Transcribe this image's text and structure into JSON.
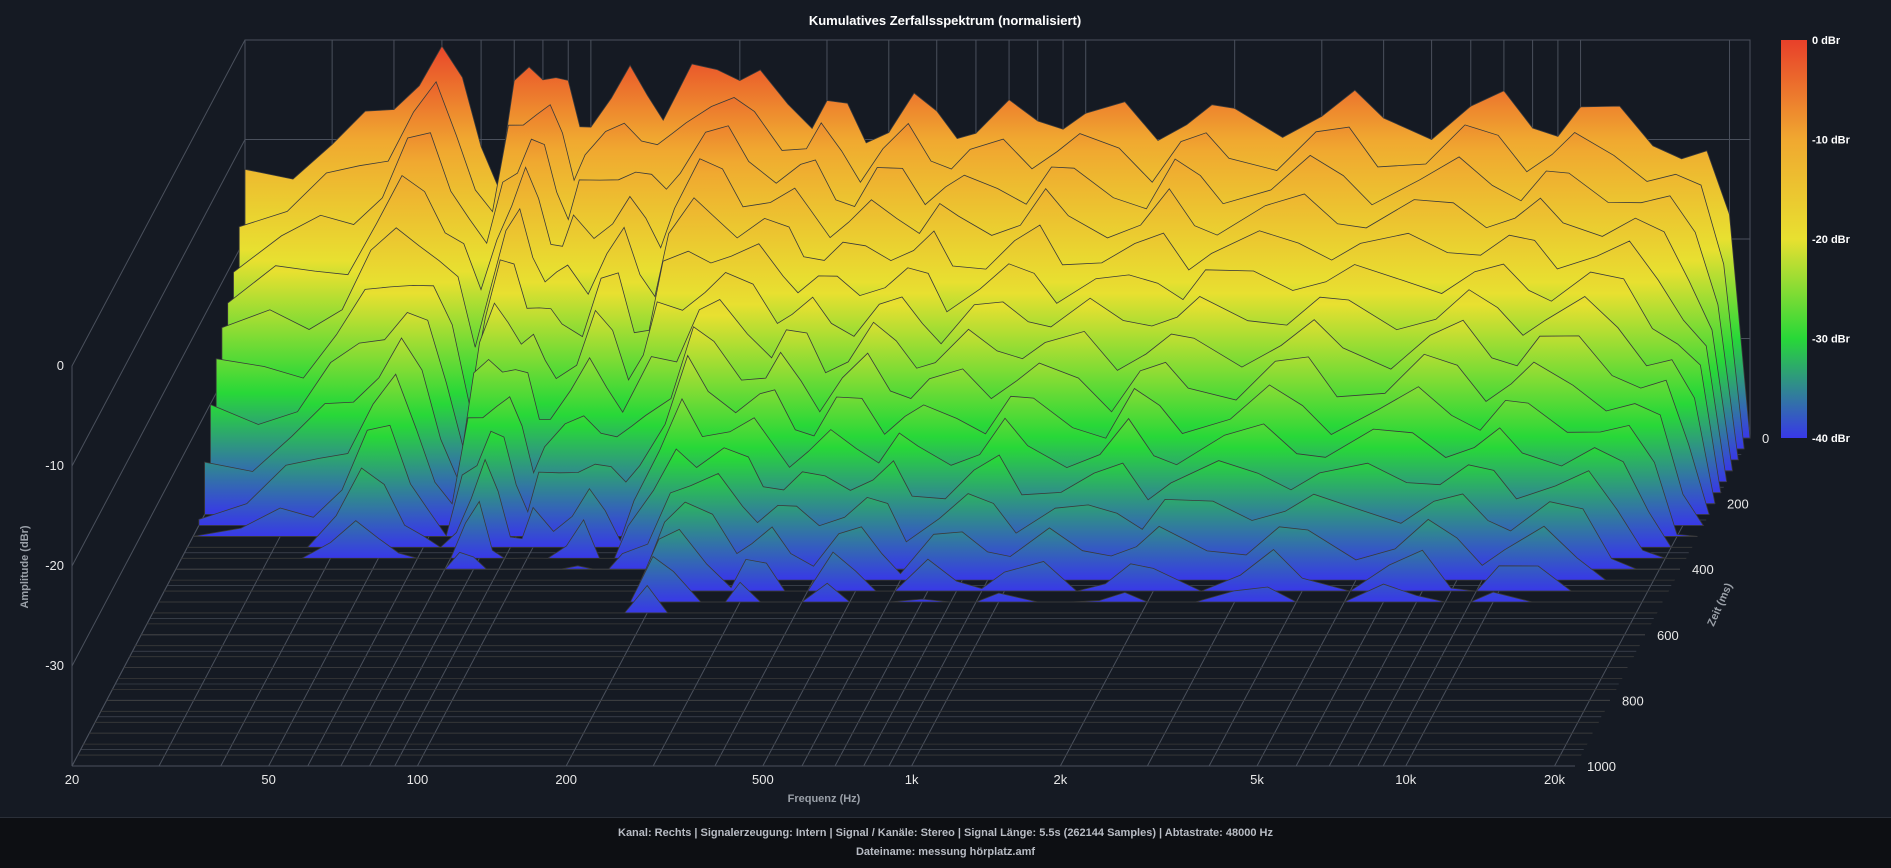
{
  "chart_data": {
    "type": "waterfall-3d",
    "title": "Kumulatives Zerfallsspektrum (normalisiert)",
    "xlabel": "Frequenz (Hz)",
    "ylabel": "Amplitude (dBr)",
    "zlabel": "Zeit (ms)",
    "x_scale": "log",
    "x_ticks": [
      20,
      50,
      100,
      200,
      500,
      1000,
      2000,
      5000,
      10000,
      20000
    ],
    "x_tick_labels": [
      "20",
      "50",
      "100",
      "200",
      "500",
      "1k",
      "2k",
      "5k",
      "10k",
      "20k"
    ],
    "y_ticks": [
      0,
      -10,
      -20,
      -30
    ],
    "y_tick_labels": [
      "0",
      "-10",
      "-20",
      "-30"
    ],
    "z_ticks": [
      0,
      200,
      400,
      600,
      800,
      1000
    ],
    "z_tick_labels": [
      "0",
      "200",
      "400",
      "600",
      "800",
      "1000"
    ],
    "colorbar": {
      "labels": [
        "0 dBr",
        "-10 dBr",
        "-20 dBr",
        "-30 dBr",
        "-40 dBr"
      ],
      "colors": [
        "#e8402a",
        "#f0a830",
        "#e8e030",
        "#28d838",
        "#3838e8"
      ]
    },
    "front_slice_freqs": [
      20,
      25,
      30,
      35,
      40,
      45,
      50,
      55,
      60,
      65,
      70,
      75,
      80,
      85,
      90,
      95,
      100,
      110,
      120,
      130,
      140,
      150,
      160,
      180,
      200,
      220,
      250,
      280,
      300,
      330,
      360,
      400,
      450,
      500,
      550,
      600,
      700,
      800,
      900,
      1000,
      1200,
      1400,
      1600,
      1800,
      2000,
      2500,
      3000,
      3500,
      4000,
      5000,
      6000,
      7000,
      8000,
      9000,
      10000,
      12000,
      14000,
      16000,
      18000,
      20000,
      22000
    ],
    "front_slice_dbr": [
      -13,
      -12,
      -11,
      -9,
      -6,
      -3,
      -2,
      -5,
      -9,
      -14,
      -6,
      -3,
      -2,
      -4,
      -6,
      -8,
      -7,
      -7,
      -4,
      -4,
      -7,
      -7,
      -3,
      -1,
      -4,
      -5,
      -6,
      -7,
      -7,
      -8,
      -9,
      -8,
      -7,
      -8,
      -8,
      -9,
      -8,
      -8,
      -7,
      -8,
      -8,
      -9,
      -7,
      -8,
      -8,
      -8,
      -7,
      -7,
      -8,
      -8,
      -7,
      -7,
      -8,
      -8,
      -8,
      -8,
      -9,
      -11,
      -13,
      -18,
      -40
    ]
  },
  "footer": {
    "line1": "Kanal: Rechts  |  Signalerzeugung: Intern  |  Signal / Kanäle: Stereo  |  Signal Länge: 5.5s (262144 Samples)  |  Abtastrate: 48000 Hz",
    "line2": "Dateiname: messung hörplatz.amf"
  }
}
